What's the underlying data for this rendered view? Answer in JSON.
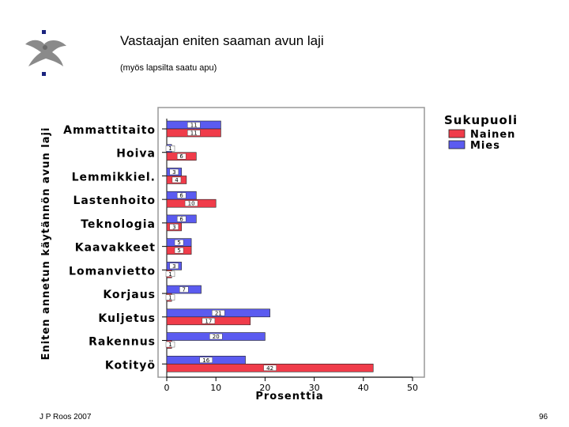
{
  "slide": {
    "title": "Vastaajan eniten saaman avun laji",
    "subtitle": "(myös lapsilta saatu apu)",
    "author": "J P Roos 2007",
    "page_number": "96"
  },
  "colors": {
    "nainen": "#f03c4a",
    "mies": "#5b5bf0",
    "plot_bg": "#ffffff",
    "frame": "#999999"
  },
  "chart_data": {
    "type": "bar",
    "orientation": "horizontal",
    "title": "",
    "xlabel": "Prosenttia",
    "ylabel": "Eniten annetun käytännön avun laji",
    "xlim": [
      0,
      50
    ],
    "xticks": [
      "0",
      "10",
      "20",
      "30",
      "40",
      "50"
    ],
    "grid": false,
    "legend_title": "Sukupuoli",
    "legend_position": "top-right",
    "categories": [
      "Ammattitaito",
      "Hoiva",
      "Lemmikkiel.",
      "Lastenhoito",
      "Teknologia",
      "Kaavakkeet",
      "Lomanvietto",
      "Korjaus",
      "Kuljetus",
      "Rakennus",
      "Kotityö"
    ],
    "series": [
      {
        "name": "Mies",
        "values": [
          11,
          1,
          3,
          6,
          6,
          5,
          3,
          7,
          21,
          20,
          16
        ],
        "labels": [
          "11",
          "1",
          "3",
          "6",
          "6",
          "5",
          "3",
          "7",
          "21",
          "20",
          "16"
        ]
      },
      {
        "name": "Nainen",
        "values": [
          11,
          6,
          4,
          10,
          3,
          5,
          1,
          1,
          17,
          1,
          42
        ],
        "labels": [
          "11",
          "6",
          "4",
          "10",
          "3",
          "5",
          "1",
          "1",
          "17",
          "1",
          "42"
        ]
      }
    ]
  }
}
